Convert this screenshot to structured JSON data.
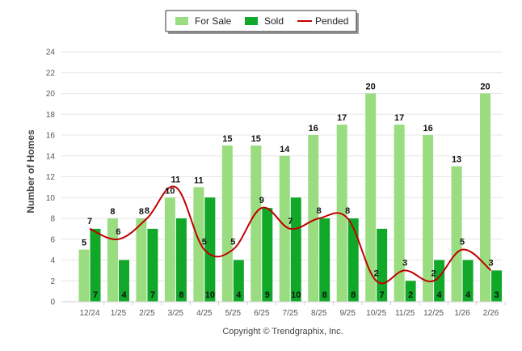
{
  "chart_data": {
    "type": "bar",
    "title": "",
    "xlabel": "",
    "ylabel": "Number of Homes",
    "ylim": [
      0,
      24
    ],
    "yticks": [
      0,
      2,
      4,
      6,
      8,
      10,
      12,
      14,
      16,
      18,
      20,
      22,
      24
    ],
    "grid": true,
    "legend_position": "top-center",
    "categories": [
      "12/24",
      "1/25",
      "2/25",
      "3/25",
      "4/25",
      "5/25",
      "6/25",
      "7/25",
      "8/25",
      "9/25",
      "10/25",
      "11/25",
      "12/25",
      "1/26",
      "2/26"
    ],
    "series": [
      {
        "name": "For Sale",
        "kind": "bar",
        "color": "#99dd80",
        "values": [
          5,
          8,
          8,
          10,
          11,
          15,
          15,
          14,
          16,
          17,
          20,
          17,
          16,
          13,
          20
        ]
      },
      {
        "name": "Sold",
        "kind": "bar",
        "color": "#11a82a",
        "values": [
          7,
          4,
          7,
          8,
          10,
          4,
          9,
          10,
          8,
          8,
          7,
          2,
          4,
          4,
          3
        ]
      },
      {
        "name": "Pended",
        "kind": "line",
        "color": "#c00000",
        "values": [
          7,
          6,
          8,
          11,
          5,
          5,
          9,
          7,
          8,
          8,
          2,
          3,
          2,
          5,
          3
        ]
      }
    ],
    "footer": "Copyright © Trendgraphix, Inc."
  }
}
